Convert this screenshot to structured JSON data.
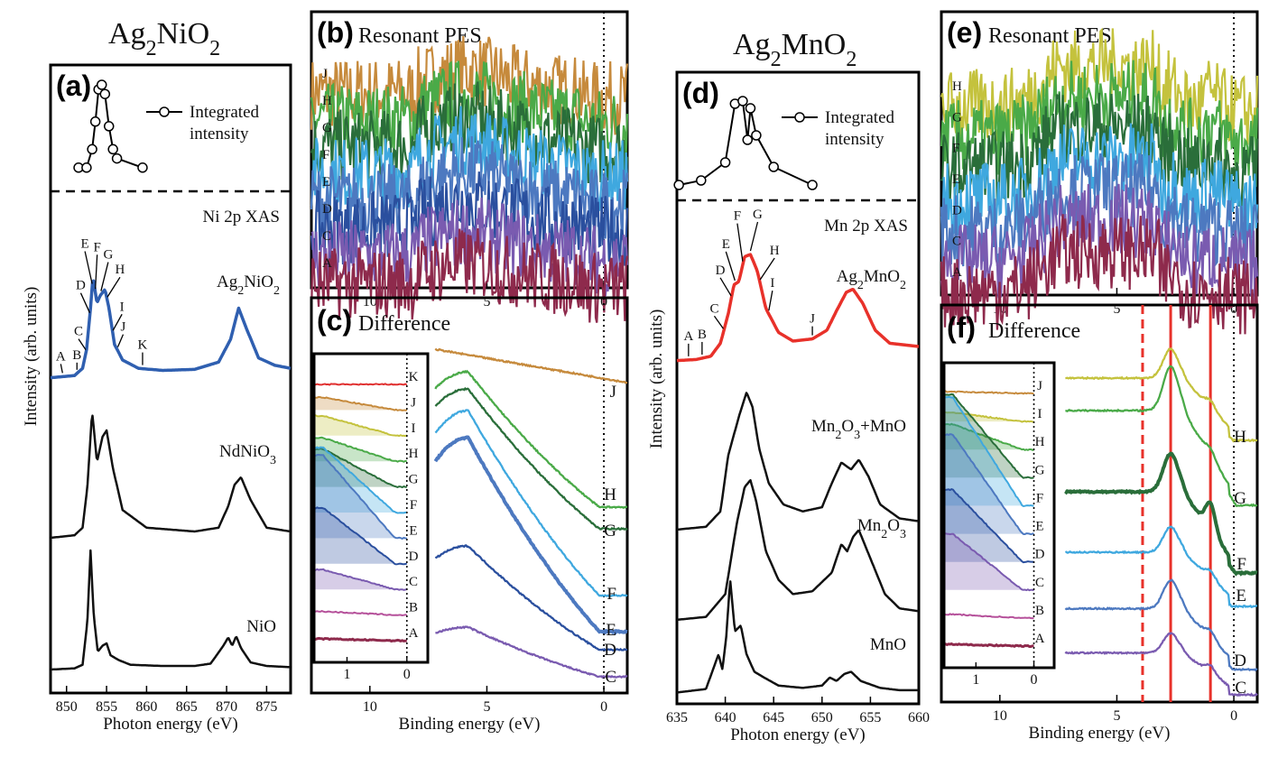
{
  "titles": {
    "left": "Ag2NiO2",
    "right": "Ag2MnO2"
  },
  "y_axis_label": "Intensity (arb. units)",
  "colors": {
    "J": "#c68a3c",
    "I": "#c4c23d",
    "H": "#4aaa48",
    "G": "#2a6e3a",
    "F": "#3fa8df",
    "E": "#4d79c0",
    "D": "#2a4f9e",
    "C": "#7a5bb0",
    "B": "#b5509a",
    "A": "#8e2a4c",
    "K": "#e03030",
    "red": "#e8312a",
    "blue": "#2f5fb0"
  },
  "chart_data": [
    {
      "id": "a",
      "type": "line",
      "panel_label": "(a)",
      "title": "Ni 2p XAS",
      "xlabel": "Photon energy (eV)",
      "xlim": [
        848,
        878
      ],
      "xticks": [
        850,
        855,
        860,
        865,
        870,
        875
      ],
      "inset_legend": "Integrated intensity",
      "inset_points": {
        "x": [
          851.5,
          852.5,
          853.2,
          853.6,
          854.0,
          854.4,
          854.8,
          855.3,
          855.8,
          856.3,
          859.5
        ],
        "y": [
          0.1,
          0.1,
          0.3,
          0.6,
          0.95,
          1.0,
          0.9,
          0.55,
          0.3,
          0.2,
          0.1
        ]
      },
      "marker_labels": [
        "A",
        "B",
        "C",
        "D",
        "E",
        "F",
        "G",
        "H",
        "I",
        "J",
        "K"
      ],
      "series": [
        {
          "name": "Ag2NiO2",
          "color": "#2f5fb0",
          "x": [
            848,
            851,
            852,
            852.5,
            853,
            853.3,
            853.8,
            854.2,
            854.8,
            855.3,
            856,
            857,
            859,
            862,
            866,
            869,
            870.5,
            871.5,
            872.5,
            874,
            876,
            878
          ],
          "y": [
            0.03,
            0.05,
            0.12,
            0.3,
            0.7,
            1.0,
            0.75,
            0.82,
            0.88,
            0.7,
            0.35,
            0.2,
            0.12,
            0.1,
            0.11,
            0.18,
            0.4,
            0.7,
            0.5,
            0.22,
            0.15,
            0.12
          ]
        },
        {
          "name": "NdNiO3",
          "color": "#111111",
          "x": [
            848,
            851,
            852,
            852.6,
            853.2,
            853.8,
            854.5,
            855,
            855.8,
            857,
            860,
            866,
            869,
            870.2,
            871,
            871.8,
            873,
            875,
            878
          ],
          "y": [
            0.0,
            0.02,
            0.08,
            0.4,
            1.0,
            0.6,
            0.8,
            0.85,
            0.55,
            0.22,
            0.08,
            0.05,
            0.08,
            0.25,
            0.42,
            0.48,
            0.3,
            0.08,
            0.05
          ]
        },
        {
          "name": "NiO",
          "color": "#111111",
          "x": [
            848,
            851,
            852,
            852.6,
            853,
            853.4,
            853.9,
            854.5,
            855,
            855.5,
            856.5,
            858,
            862,
            866,
            868,
            869.6,
            870.2,
            870.7,
            871.2,
            871.8,
            873,
            875,
            878
          ],
          "y": [
            0.0,
            0.01,
            0.04,
            0.4,
            1.0,
            0.45,
            0.15,
            0.2,
            0.22,
            0.12,
            0.08,
            0.04,
            0.03,
            0.03,
            0.05,
            0.2,
            0.27,
            0.2,
            0.28,
            0.18,
            0.06,
            0.03,
            0.02
          ]
        }
      ]
    },
    {
      "id": "b",
      "type": "line",
      "panel_label": "(b)",
      "title": "Resonant PES",
      "xlabel": "",
      "xlim": [
        12.5,
        -1
      ],
      "xticks": [
        10,
        5,
        0
      ],
      "series": [
        {
          "name": "J",
          "color": "#c68a3c"
        },
        {
          "name": "H",
          "color": "#4aaa48"
        },
        {
          "name": "G",
          "color": "#2a6e3a"
        },
        {
          "name": "F",
          "color": "#3fa8df"
        },
        {
          "name": "E",
          "color": "#4d79c0"
        },
        {
          "name": "D",
          "color": "#2a4f9e"
        },
        {
          "name": "C",
          "color": "#7a5bb0"
        },
        {
          "name": "A",
          "color": "#8e2a4c"
        }
      ]
    },
    {
      "id": "c",
      "type": "line",
      "panel_label": "(c)",
      "title": "Difference",
      "xlabel": "Binding energy (eV)",
      "xlim": [
        12.5,
        -1
      ],
      "xticks": [
        10,
        5,
        0
      ],
      "inset_xticks": [
        1,
        0
      ],
      "inset_labels": [
        "K",
        "J",
        "I",
        "H",
        "G",
        "F",
        "E",
        "D",
        "C",
        "B",
        "A"
      ],
      "series": [
        {
          "name": "J",
          "color": "#c68a3c"
        },
        {
          "name": "H",
          "color": "#4aaa48"
        },
        {
          "name": "G",
          "color": "#2a6e3a"
        },
        {
          "name": "F",
          "color": "#3fa8df"
        },
        {
          "name": "E",
          "color": "#4d79c0"
        },
        {
          "name": "D",
          "color": "#2a4f9e"
        },
        {
          "name": "C",
          "color": "#7a5bb0"
        }
      ]
    },
    {
      "id": "d",
      "type": "line",
      "panel_label": "(d)",
      "title": "Mn 2p XAS",
      "xlabel": "Photon energy (eV)",
      "xlim": [
        635,
        660
      ],
      "xticks": [
        635,
        640,
        645,
        650,
        655,
        660
      ],
      "inset_legend": "Integrated intensity",
      "inset_points": {
        "x": [
          635.2,
          637.5,
          640.0,
          641.0,
          641.8,
          642.3,
          642.6,
          643.2,
          645.0,
          649.0
        ],
        "y": [
          0.05,
          0.1,
          0.3,
          0.95,
          0.98,
          0.55,
          0.9,
          0.6,
          0.25,
          0.05
        ]
      },
      "marker_labels": [
        "A",
        "B",
        "C",
        "D",
        "E",
        "F",
        "G",
        "H",
        "I",
        "J"
      ],
      "series": [
        {
          "name": "Ag2MnO2",
          "color": "#e8312a",
          "x": [
            635,
            637,
            638.5,
            639.5,
            640.3,
            640.9,
            641.4,
            642,
            642.6,
            643.3,
            644.2,
            645.5,
            647,
            649,
            650.5,
            651.5,
            652.5,
            653.2,
            654.2,
            655.5,
            657,
            660
          ],
          "y": [
            0.02,
            0.03,
            0.06,
            0.18,
            0.45,
            0.72,
            0.75,
            0.98,
            1.0,
            0.85,
            0.5,
            0.28,
            0.2,
            0.22,
            0.3,
            0.48,
            0.65,
            0.68,
            0.55,
            0.3,
            0.18,
            0.15
          ]
        },
        {
          "name": "Mn2O3+MnO",
          "color": "#111111",
          "x": [
            635,
            638,
            639.5,
            640.3,
            640.9,
            641.5,
            642.2,
            642.8,
            643.5,
            644.5,
            646,
            648,
            650,
            651,
            652,
            653,
            653.8,
            654.8,
            656,
            658,
            660
          ],
          "y": [
            0.02,
            0.04,
            0.15,
            0.55,
            0.7,
            0.85,
            1.0,
            0.9,
            0.6,
            0.35,
            0.2,
            0.15,
            0.18,
            0.35,
            0.5,
            0.45,
            0.52,
            0.4,
            0.2,
            0.1,
            0.08
          ]
        },
        {
          "name": "Mn2O3",
          "color": "#111111",
          "x": [
            635,
            638,
            640,
            641.2,
            642,
            642.6,
            643.2,
            644.2,
            645.5,
            647,
            649,
            651,
            652,
            652.6,
            653.2,
            653.8,
            655,
            656.5,
            658,
            660
          ],
          "y": [
            0.02,
            0.04,
            0.2,
            0.7,
            0.95,
            1.0,
            0.85,
            0.5,
            0.3,
            0.2,
            0.22,
            0.35,
            0.55,
            0.5,
            0.6,
            0.65,
            0.45,
            0.2,
            0.1,
            0.08
          ]
        },
        {
          "name": "MnO",
          "color": "#111111",
          "x": [
            635,
            638,
            639.3,
            639.7,
            640.1,
            640.5,
            641,
            641.6,
            642.2,
            643,
            644,
            645.5,
            648,
            650,
            650.8,
            651.5,
            652.3,
            653,
            654,
            656,
            658,
            660
          ],
          "y": [
            0.02,
            0.05,
            0.35,
            0.22,
            0.5,
            1.0,
            0.55,
            0.6,
            0.35,
            0.2,
            0.15,
            0.08,
            0.06,
            0.08,
            0.15,
            0.12,
            0.18,
            0.2,
            0.12,
            0.06,
            0.04,
            0.04
          ]
        }
      ]
    },
    {
      "id": "e",
      "type": "line",
      "panel_label": "(e)",
      "title": "Resonant PES",
      "xlabel": "",
      "xlim": [
        12.5,
        -1
      ],
      "xticks": [
        10,
        5,
        0
      ],
      "series": [
        {
          "name": "H",
          "color": "#c4c23d"
        },
        {
          "name": "G",
          "color": "#4aaa48"
        },
        {
          "name": "F",
          "color": "#2a6e3a"
        },
        {
          "name": "E",
          "color": "#3fa8df"
        },
        {
          "name": "D",
          "color": "#4d79c0"
        },
        {
          "name": "C",
          "color": "#7a5bb0"
        },
        {
          "name": "A",
          "color": "#8e2a4c"
        }
      ]
    },
    {
      "id": "f",
      "type": "line",
      "panel_label": "(f)",
      "title": "Difference",
      "xlabel": "Binding energy (eV)",
      "xlim": [
        12.5,
        -1
      ],
      "xticks": [
        10,
        5,
        0
      ],
      "inset_xticks": [
        1,
        0
      ],
      "inset_labels": [
        "J",
        "I",
        "H",
        "G",
        "F",
        "E",
        "D",
        "C",
        "B",
        "A"
      ],
      "vlines": [
        3.9,
        2.7,
        1.0
      ],
      "series": [
        {
          "name": "H",
          "color": "#c4c23d"
        },
        {
          "name": "G",
          "color": "#4aaa48"
        },
        {
          "name": "F",
          "color": "#2a6e3a"
        },
        {
          "name": "E",
          "color": "#3fa8df"
        },
        {
          "name": "D",
          "color": "#4d79c0"
        },
        {
          "name": "C",
          "color": "#7a5bb0"
        }
      ]
    }
  ]
}
